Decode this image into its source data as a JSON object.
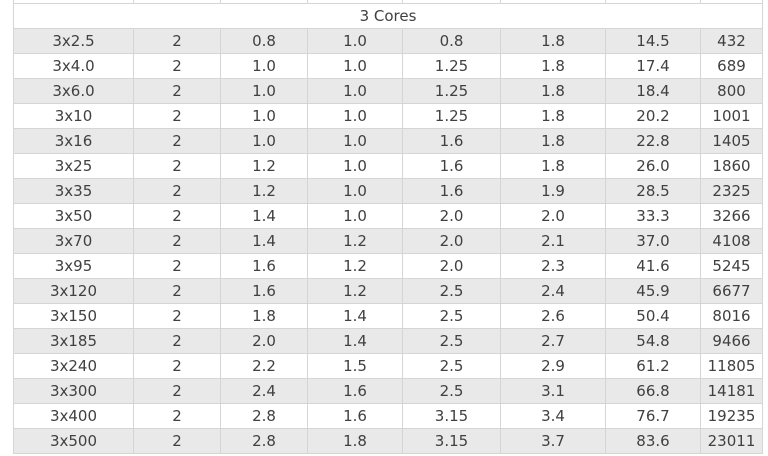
{
  "table": {
    "section_header": "3 Cores",
    "rows": [
      [
        "3x2.5",
        "2",
        "0.8",
        "1.0",
        "0.8",
        "1.8",
        "14.5",
        "432"
      ],
      [
        "3x4.0",
        "2",
        "1.0",
        "1.0",
        "1.25",
        "1.8",
        "17.4",
        "689"
      ],
      [
        "3x6.0",
        "2",
        "1.0",
        "1.0",
        "1.25",
        "1.8",
        "18.4",
        "800"
      ],
      [
        "3x10",
        "2",
        "1.0",
        "1.0",
        "1.25",
        "1.8",
        "20.2",
        "1001"
      ],
      [
        "3x16",
        "2",
        "1.0",
        "1.0",
        "1.6",
        "1.8",
        "22.8",
        "1405"
      ],
      [
        "3x25",
        "2",
        "1.2",
        "1.0",
        "1.6",
        "1.8",
        "26.0",
        "1860"
      ],
      [
        "3x35",
        "2",
        "1.2",
        "1.0",
        "1.6",
        "1.9",
        "28.5",
        "2325"
      ],
      [
        "3x50",
        "2",
        "1.4",
        "1.0",
        "2.0",
        "2.0",
        "33.3",
        "3266"
      ],
      [
        "3x70",
        "2",
        "1.4",
        "1.2",
        "2.0",
        "2.1",
        "37.0",
        "4108"
      ],
      [
        "3x95",
        "2",
        "1.6",
        "1.2",
        "2.0",
        "2.3",
        "41.6",
        "5245"
      ],
      [
        "3x120",
        "2",
        "1.6",
        "1.2",
        "2.5",
        "2.4",
        "45.9",
        "6677"
      ],
      [
        "3x150",
        "2",
        "1.8",
        "1.4",
        "2.5",
        "2.6",
        "50.4",
        "8016"
      ],
      [
        "3x185",
        "2",
        "2.0",
        "1.4",
        "2.5",
        "2.7",
        "54.8",
        "9466"
      ],
      [
        "3x240",
        "2",
        "2.2",
        "1.5",
        "2.5",
        "2.9",
        "61.2",
        "11805"
      ],
      [
        "3x300",
        "2",
        "2.4",
        "1.6",
        "2.5",
        "3.1",
        "66.8",
        "14181"
      ],
      [
        "3x400",
        "2",
        "2.8",
        "1.6",
        "3.15",
        "3.4",
        "76.7",
        "19235"
      ],
      [
        "3x500",
        "2",
        "2.8",
        "1.8",
        "3.15",
        "3.7",
        "83.6",
        "23011"
      ]
    ],
    "colors": {
      "alt_row_bg": "#e9e9e9",
      "row_bg": "#ffffff",
      "border": "#d5d5d5",
      "text": "#404040"
    }
  }
}
